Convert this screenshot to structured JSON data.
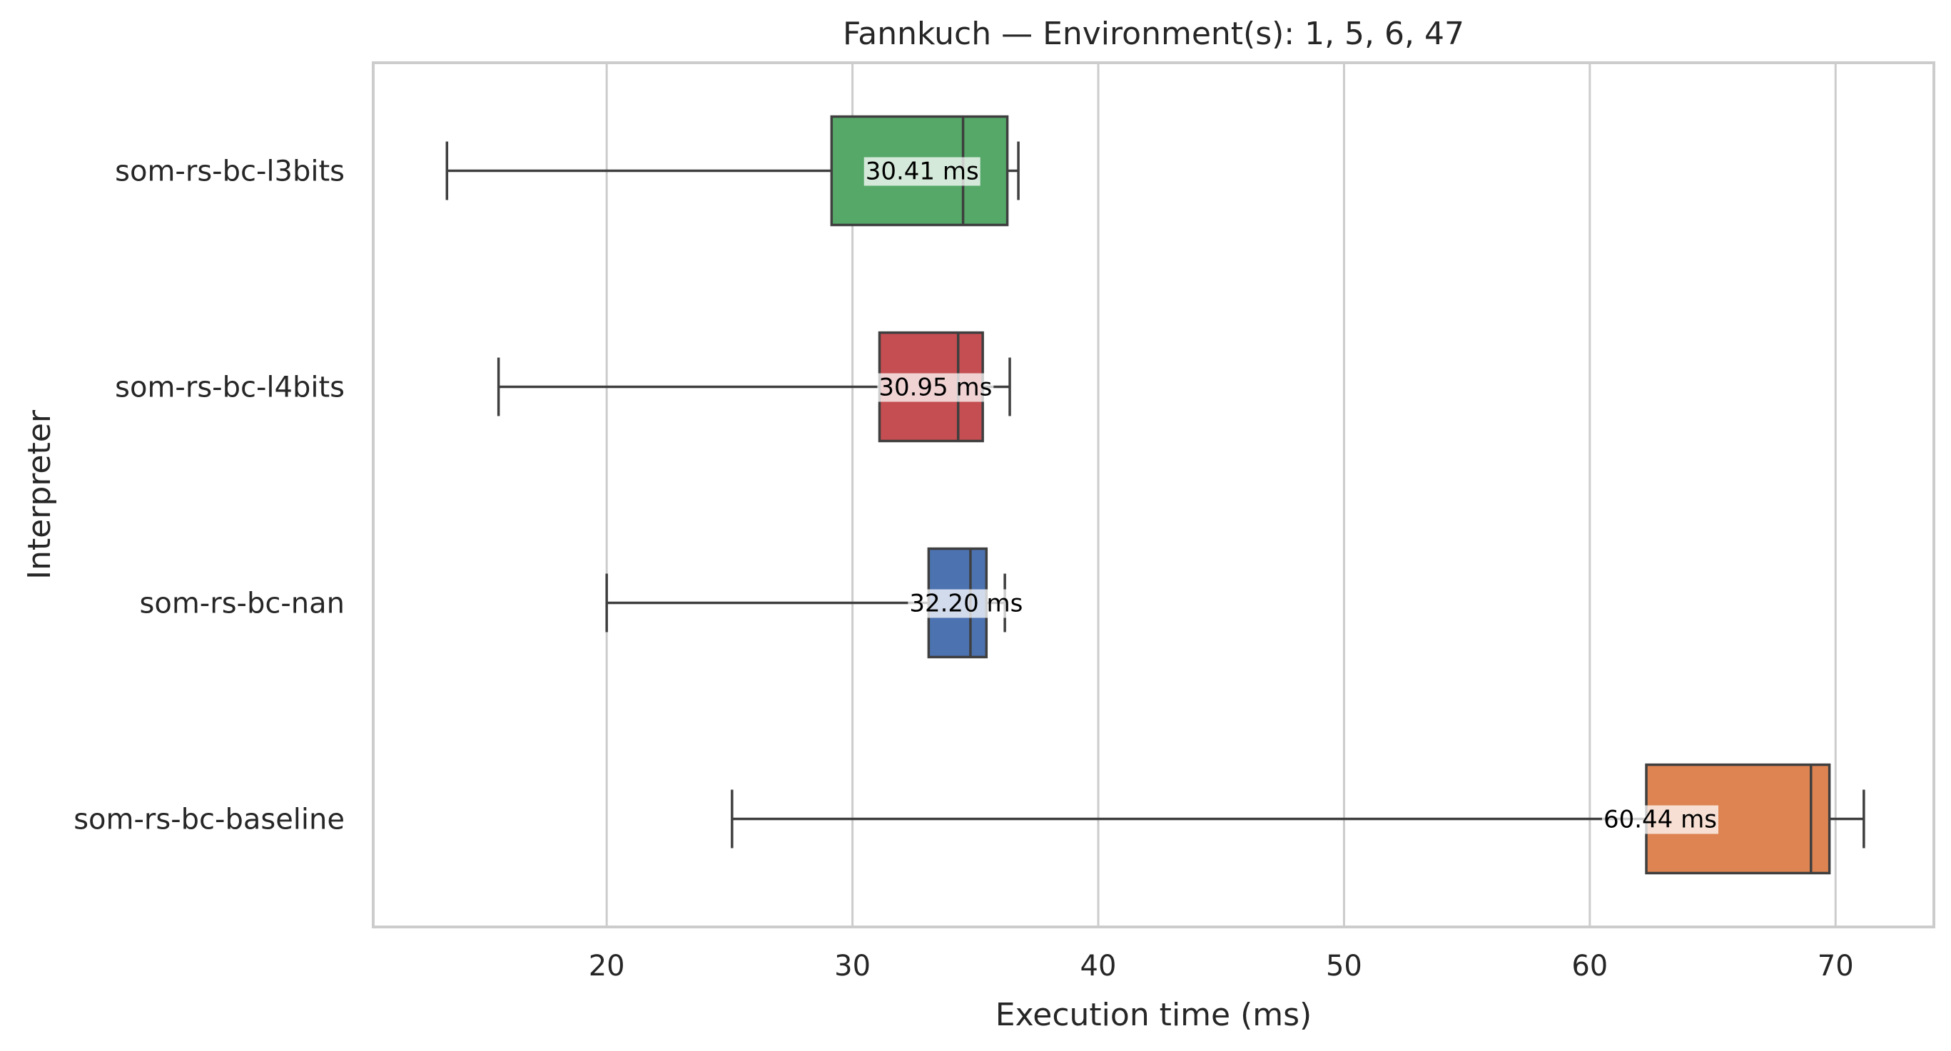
{
  "chart_data": {
    "type": "boxplot",
    "orientation": "horizontal",
    "title": "Fannkuch — Environment(s): 1, 5, 6, 47",
    "xlabel": "Execution time (ms)",
    "ylabel": "Interpreter",
    "xlim": [
      10.5,
      74
    ],
    "xticks": [
      20,
      30,
      40,
      50,
      60,
      70
    ],
    "grid": "vertical",
    "series": [
      {
        "name": "som-rs-bc-l3bits",
        "min": 13.5,
        "q1": 29.15,
        "median": 34.5,
        "q3": 36.3,
        "max": 36.75,
        "mean_label": "30.41 ms",
        "mean": 30.41,
        "color": "#55a868"
      },
      {
        "name": "som-rs-bc-l4bits",
        "min": 15.6,
        "q1": 31.1,
        "median": 34.3,
        "q3": 35.3,
        "max": 36.4,
        "mean_label": "30.95 ms",
        "mean": 30.95,
        "color": "#c44e52"
      },
      {
        "name": "som-rs-bc-nan",
        "min": 20.0,
        "q1": 33.1,
        "median": 34.8,
        "q3": 35.45,
        "max": 36.2,
        "mean_label": "32.20 ms",
        "mean": 32.2,
        "color": "#4c72b0"
      },
      {
        "name": "som-rs-bc-baseline",
        "min": 25.1,
        "q1": 62.3,
        "median": 69.0,
        "q3": 69.75,
        "max": 71.15,
        "mean_label": "60.44 ms",
        "mean": 60.44,
        "color": "#dd8452"
      }
    ]
  }
}
